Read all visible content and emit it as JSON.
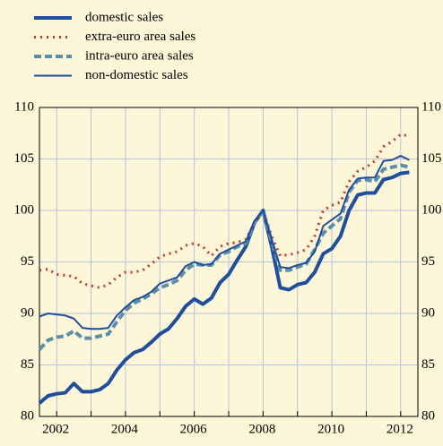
{
  "chart_data": {
    "type": "line",
    "x": [
      2001.5,
      2001.75,
      2002,
      2002.25,
      2002.5,
      2002.75,
      2003,
      2003.25,
      2003.5,
      2003.75,
      2004,
      2004.25,
      2004.5,
      2004.75,
      2005,
      2005.25,
      2005.5,
      2005.75,
      2006,
      2006.25,
      2006.5,
      2006.75,
      2007,
      2007.25,
      2007.5,
      2007.75,
      2008,
      2008.25,
      2008.5,
      2008.75,
      2009,
      2009.25,
      2009.5,
      2009.75,
      2010,
      2010.25,
      2010.5,
      2010.75,
      2011,
      2011.25,
      2011.5,
      2011.75,
      2012,
      2012.25
    ],
    "series": [
      {
        "name": "domestic sales",
        "color": "#1f4e9c",
        "width": 4,
        "dash": "none",
        "values": [
          81.3,
          82.0,
          82.2,
          82.3,
          83.2,
          82.4,
          82.4,
          82.6,
          83.2,
          84.5,
          85.5,
          86.2,
          86.5,
          87.2,
          88.0,
          88.5,
          89.5,
          90.7,
          91.4,
          90.9,
          91.5,
          93.0,
          93.8,
          95.2,
          96.5,
          98.8,
          100.0,
          96.5,
          92.5,
          92.3,
          92.8,
          93.0,
          94.0,
          95.8,
          96.3,
          97.5,
          100.0,
          101.5,
          101.7,
          101.7,
          103.0,
          103.2,
          103.6,
          103.7
        ]
      },
      {
        "name": "extra-euro area sales",
        "color": "#c0392b",
        "width": 3,
        "dash": "2 5",
        "values": [
          94.2,
          94.3,
          93.8,
          93.7,
          93.6,
          92.9,
          92.7,
          92.5,
          92.8,
          93.5,
          94.0,
          94.0,
          94.2,
          94.8,
          95.5,
          95.8,
          96.0,
          96.6,
          96.8,
          96.5,
          95.6,
          96.5,
          96.8,
          96.9,
          97.2,
          98.8,
          100.0,
          97.5,
          95.6,
          95.7,
          95.9,
          96.2,
          97.5,
          100.0,
          100.5,
          100.8,
          102.8,
          103.8,
          104.2,
          104.8,
          106.2,
          106.7,
          107.4,
          107.2
        ]
      },
      {
        "name": "intra-euro area sales",
        "color": "#5b8fa8",
        "width": 4,
        "dash": "8 4",
        "values": [
          86.5,
          87.4,
          87.7,
          87.8,
          88.3,
          87.6,
          87.6,
          87.8,
          88.0,
          89.2,
          90.3,
          91.0,
          91.4,
          91.9,
          92.5,
          92.8,
          93.2,
          94.2,
          94.8,
          94.7,
          94.7,
          95.7,
          96.0,
          96.5,
          96.8,
          98.8,
          100.0,
          97.0,
          94.2,
          94.2,
          94.5,
          94.8,
          96.2,
          97.8,
          98.5,
          99.2,
          101.8,
          102.9,
          103.0,
          102.8,
          104.0,
          104.2,
          104.4,
          104.2
        ]
      },
      {
        "name": "non-domestic sales",
        "color": "#1f4e9c",
        "width": 2,
        "dash": "none",
        "values": [
          89.7,
          90.0,
          89.9,
          89.8,
          89.5,
          88.6,
          88.5,
          88.5,
          88.6,
          89.8,
          90.6,
          91.3,
          91.6,
          92.1,
          92.9,
          93.2,
          93.5,
          94.6,
          95.0,
          94.7,
          94.8,
          95.8,
          96.2,
          96.6,
          97.0,
          99.0,
          100.0,
          97.2,
          94.5,
          94.4,
          94.7,
          94.9,
          96.0,
          98.5,
          99.1,
          99.7,
          102.0,
          103.1,
          103.2,
          103.2,
          104.8,
          104.9,
          105.3,
          104.9
        ]
      }
    ],
    "xlim": [
      2001.5,
      2012.5
    ],
    "xticks": [
      2002,
      2004,
      2006,
      2008,
      2010,
      2012
    ],
    "xticks_minor": [
      2003,
      2005,
      2007,
      2009,
      2011
    ],
    "ylim": [
      80,
      110
    ],
    "yticks": [
      80,
      85,
      90,
      95,
      100,
      105,
      110
    ],
    "y2lim": [
      80,
      110
    ],
    "y2ticks": [
      80,
      85,
      90,
      95,
      100,
      105,
      110
    ],
    "grid": true
  }
}
